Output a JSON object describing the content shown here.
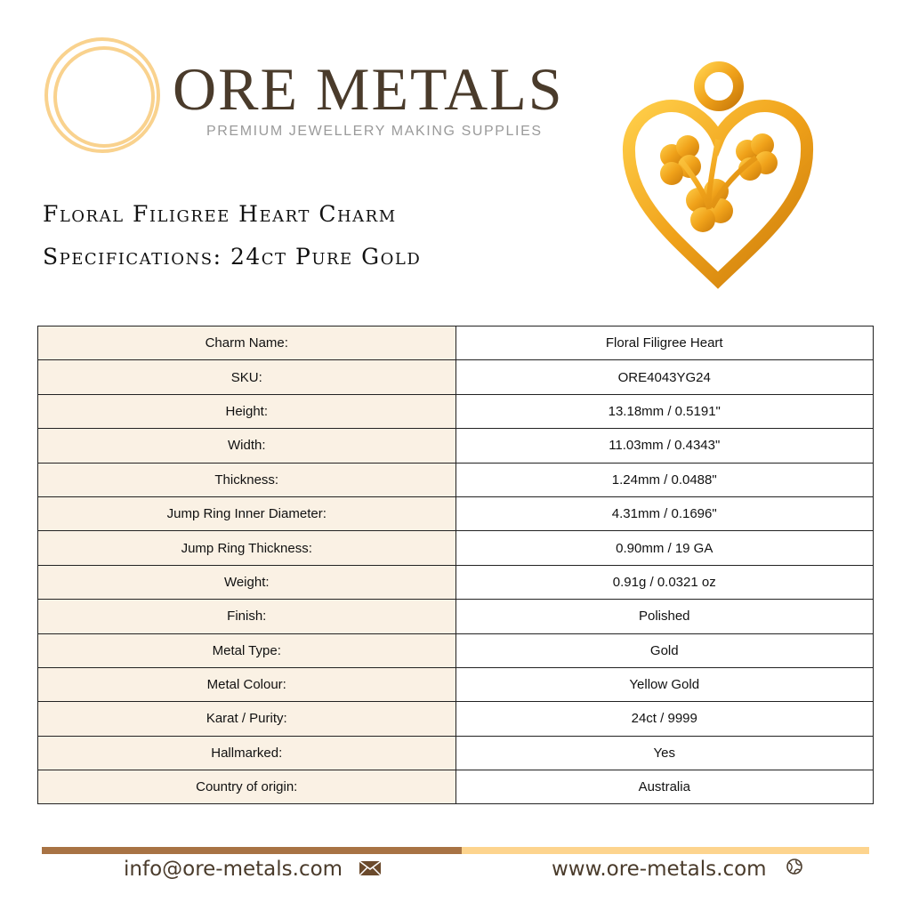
{
  "brand": {
    "name": "ORE METALS",
    "tagline": "PREMIUM JEWELLERY MAKING SUPPLIES"
  },
  "title": "Floral Filigree Heart Charm",
  "subtitle": "Specifications: 24ct Pure Gold",
  "specs": [
    [
      "Charm Name:",
      "Floral Filigree Heart"
    ],
    [
      "SKU:",
      "ORE4043YG24"
    ],
    [
      "Height:",
      "13.18mm / 0.5191\""
    ],
    [
      "Width:",
      "11.03mm / 0.4343\""
    ],
    [
      "Thickness:",
      "1.24mm / 0.0488\""
    ],
    [
      "Jump Ring Inner Diameter:",
      "4.31mm / 0.1696\""
    ],
    [
      "Jump Ring Thickness:",
      "0.90mm / 19 GA"
    ],
    [
      "Weight:",
      "0.91g / 0.0321 oz"
    ],
    [
      "Finish:",
      "Polished"
    ],
    [
      "Metal Type:",
      "Gold"
    ],
    [
      "Metal Colour:",
      "Yellow Gold"
    ],
    [
      "Karat / Purity:",
      "24ct / 9999"
    ],
    [
      "Hallmarked:",
      "Yes"
    ],
    [
      "Country of origin:",
      "Australia"
    ]
  ],
  "footer": {
    "email": "info@ore-metals.com",
    "website": "www.ore-metals.com",
    "email_icon": "envelope-icon",
    "web_icon": "globe-icon"
  }
}
